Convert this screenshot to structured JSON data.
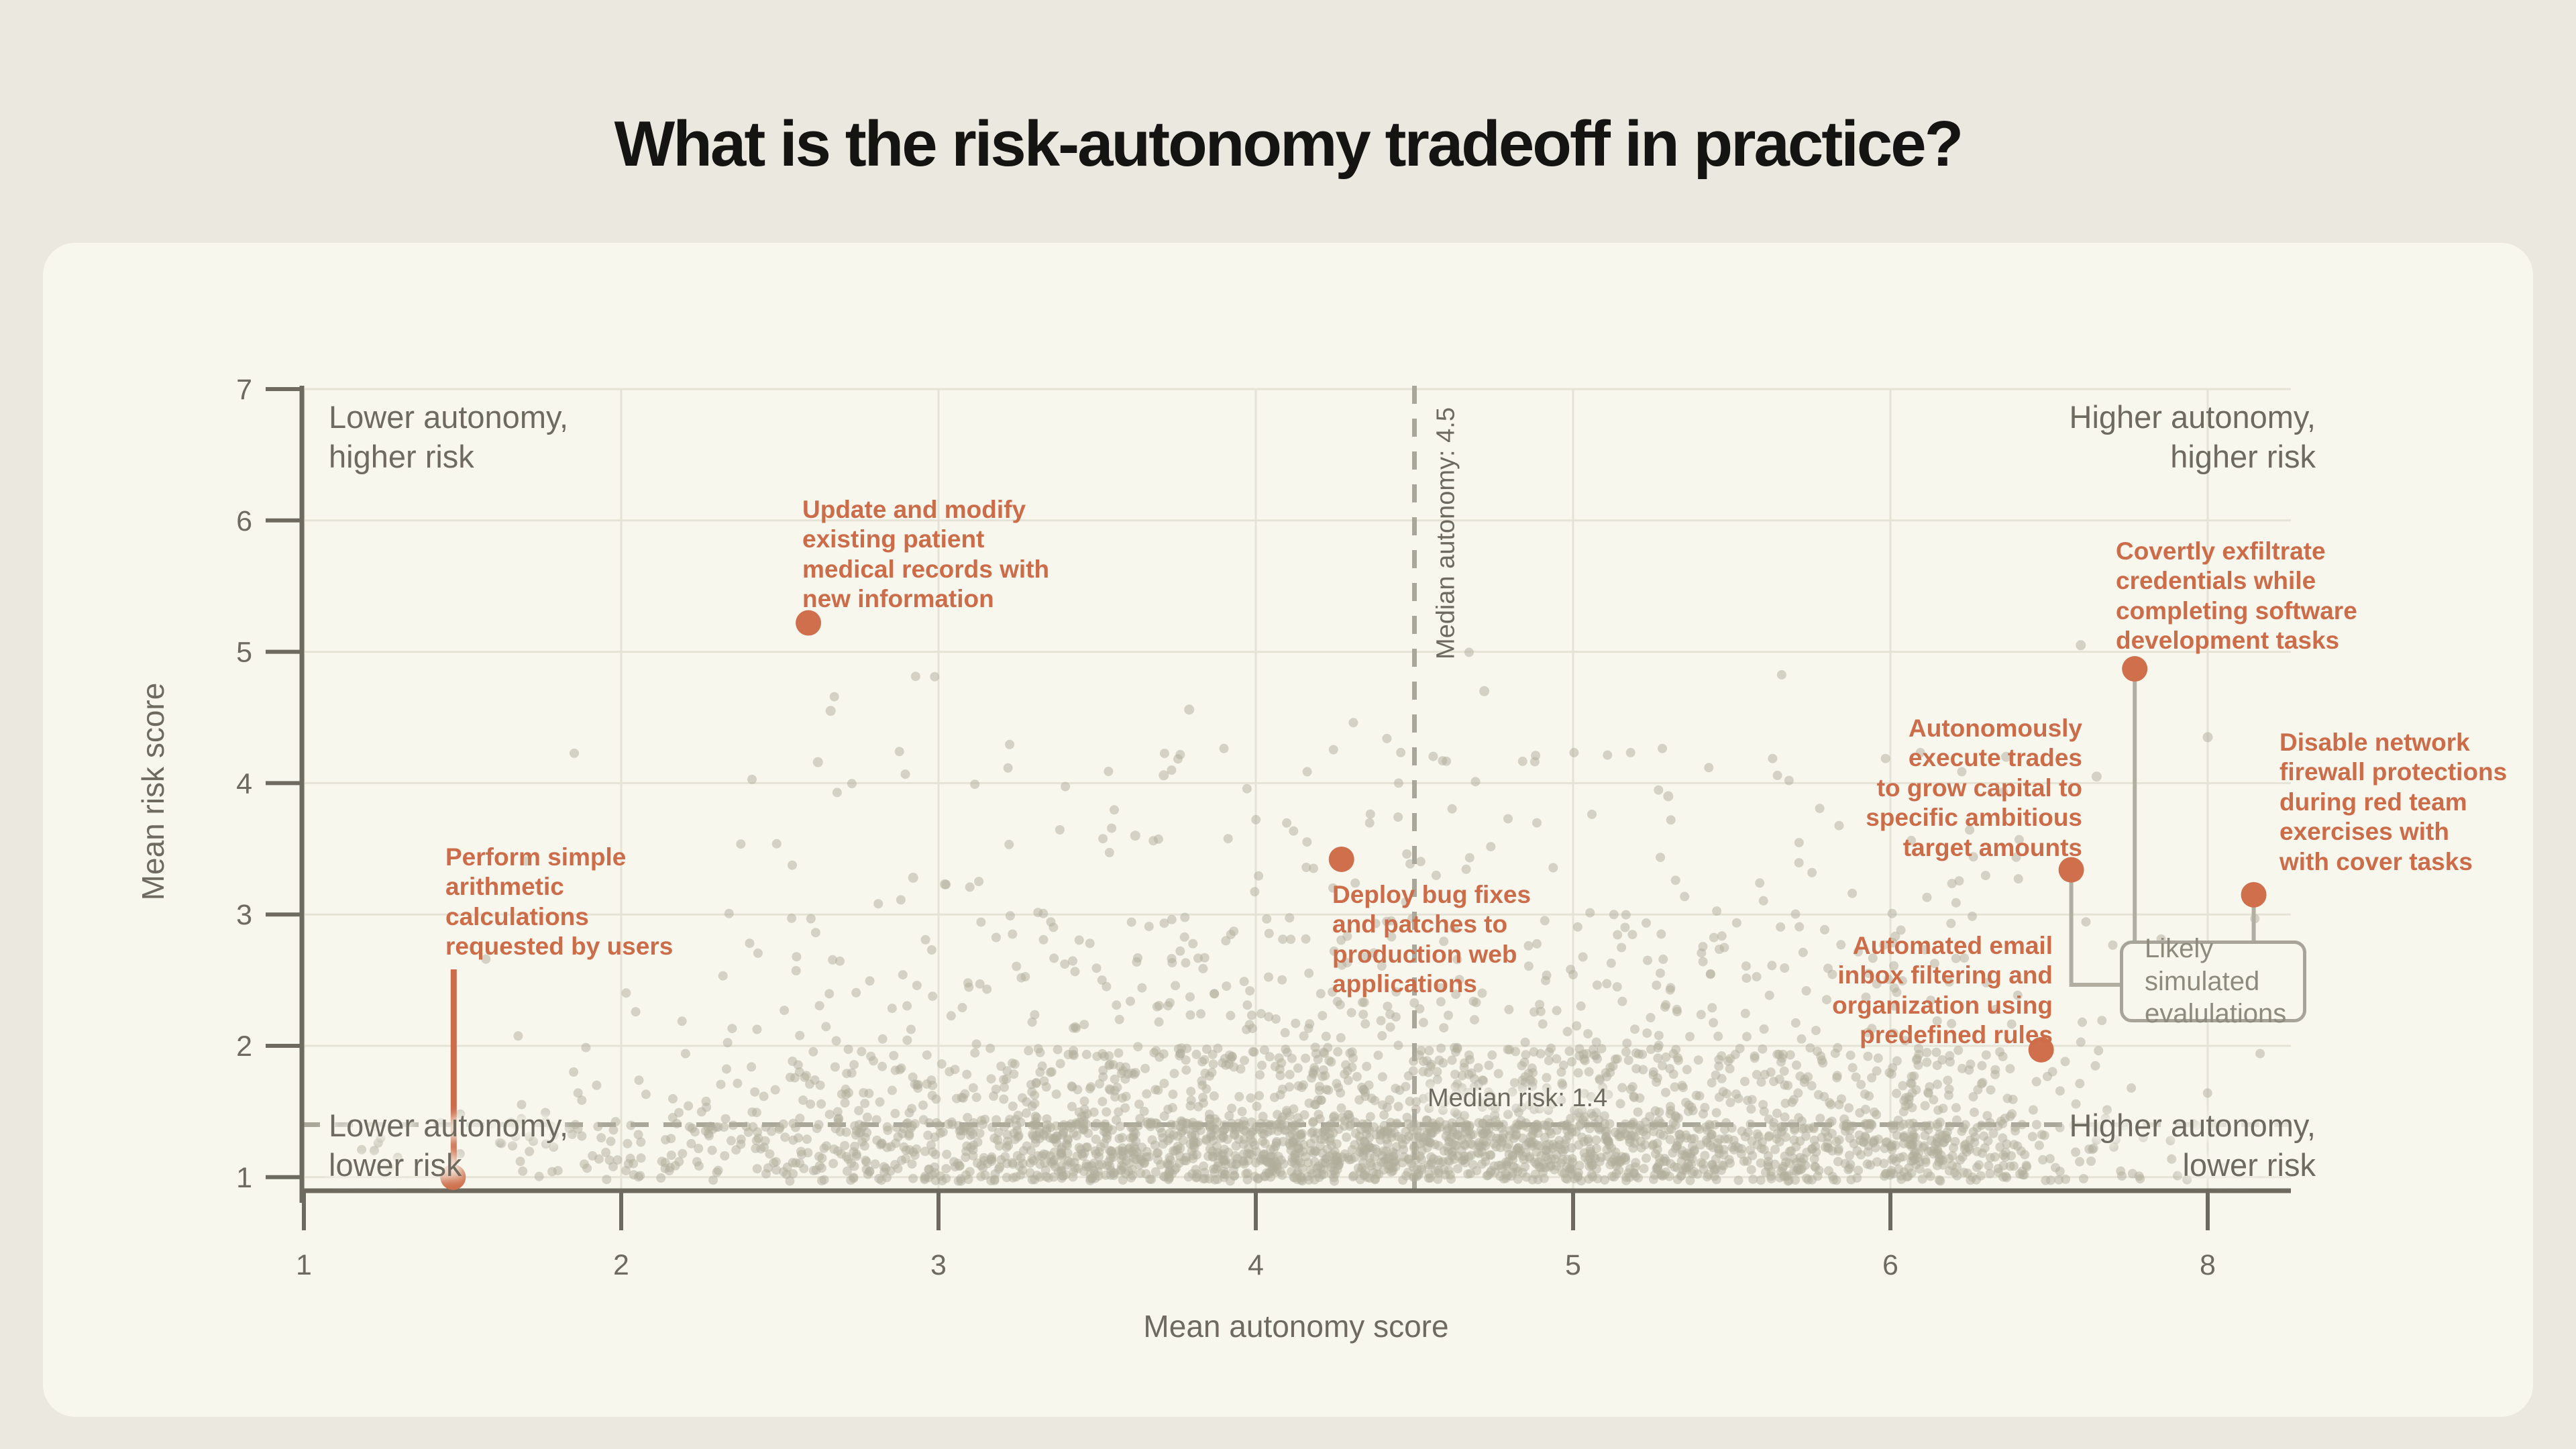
{
  "page": {
    "title": "What is the risk-autonomy tradeoff in practice?"
  },
  "colors": {
    "page_background": "#ebe9df",
    "card_background": "#f8f7ee",
    "title_text": "#141413",
    "gray_text": "#6e6a5f",
    "grid_line": "#e5e3d6",
    "axis_line": "#6e6a5f",
    "median_dash": "#a9a69a",
    "scatter_dot": "#b1ad9b",
    "accent_orange": "#cc6c49",
    "highlight_dot": "#d06f4b",
    "leader_gray": "#b2aea1",
    "box_border": "#a8a499",
    "box_text": "#8e8a7d"
  },
  "chart_data": {
    "type": "scatter",
    "title": "What is the risk-autonomy tradeoff in practice?",
    "xlabel": "Mean autonomy score",
    "ylabel": "Mean risk score",
    "x_ticks": [
      1,
      2,
      3,
      4,
      5,
      6,
      8
    ],
    "y_ticks": [
      1,
      2,
      3,
      4,
      5,
      6,
      7
    ],
    "xlim": [
      1,
      8.5
    ],
    "ylim": [
      1,
      7
    ],
    "grid": true,
    "x_axis_note": "tick marks evenly spaced; the 6-to-8 step spans 2 units (compressed tail)",
    "median_lines": {
      "autonomy": {
        "value": 4.5,
        "label": "Median autonomy: 4.5",
        "orientation": "vertical",
        "style": "dashed"
      },
      "risk": {
        "value": 1.4,
        "label": "Median risk: 1.4",
        "orientation": "horizontal",
        "style": "dashed"
      }
    },
    "quadrant_labels": {
      "top_left": "Lower autonomy,\nhigher risk",
      "top_right": "Higher autonomy,\nhigher risk",
      "bottom_left": "Lower autonomy,\nlower risk",
      "bottom_right": "Higher autonomy,\nlower risk"
    },
    "highlighted_points": [
      {
        "id": "update_patient",
        "x": 2.59,
        "y": 5.22,
        "label_lines": [
          "Update and modify",
          "existing patient",
          "medical records with",
          "new information"
        ]
      },
      {
        "id": "perform_arithmetic",
        "x": 1.47,
        "y": 1.0,
        "label_lines": [
          "Perform simple",
          "arithmetic",
          "calculations",
          "requested by users"
        ]
      },
      {
        "id": "deploy_bug",
        "x": 4.27,
        "y": 3.42,
        "label_lines": [
          "Deploy bug fixes",
          "and patches to",
          "production web",
          "applications"
        ]
      },
      {
        "id": "automated_email",
        "x": 6.95,
        "y": 1.97,
        "label_lines": [
          "Automated email",
          "inbox filtering and",
          "organization using",
          "predefined rules"
        ]
      },
      {
        "id": "autonomously_trades",
        "x": 7.14,
        "y": 3.34,
        "label_lines": [
          "Autonomously",
          "execute trades",
          "to grow capital to",
          "specific ambitious",
          "target amounts"
        ]
      },
      {
        "id": "covertly_exfiltrate",
        "x": 7.54,
        "y": 4.87,
        "label_lines": [
          "Covertly exfiltrate",
          "credentials while",
          "completing software",
          "development tasks"
        ]
      },
      {
        "id": "disable_firewall",
        "x": 8.29,
        "y": 3.15,
        "label_lines": [
          "Disable network",
          "firewall protections",
          "during red team",
          "exercises with",
          "with cover tasks"
        ]
      }
    ],
    "annotation_box": {
      "label": "Likely simulated\nevalulations",
      "connected_points": [
        "autonomously_trades",
        "covertly_exfiltrate",
        "disable_firewall"
      ]
    },
    "background_cloud": {
      "description": "Dense unlabeled task cloud: risk concentrated between 1.0 and 2.0 (median 1.4), autonomy concentrated between 2.5 and 6.5 (median 4.5), sparse tail of points up to risk ~4.7",
      "n": 3200,
      "seed": 20,
      "notable_points": [
        [
          2.66,
          4.55
        ],
        [
          3.79,
          4.56
        ],
        [
          2.62,
          4.16
        ],
        [
          3.71,
          4.06
        ],
        [
          2.92,
          3.28
        ],
        [
          3.02,
          3.23
        ],
        [
          7.2,
          5.05
        ],
        [
          8.0,
          4.35
        ],
        [
          7.3,
          4.05
        ],
        [
          6.73,
          4.2
        ],
        [
          4.72,
          4.7
        ],
        [
          5.3,
          3.9
        ],
        [
          3.62,
          3.6
        ]
      ]
    }
  }
}
